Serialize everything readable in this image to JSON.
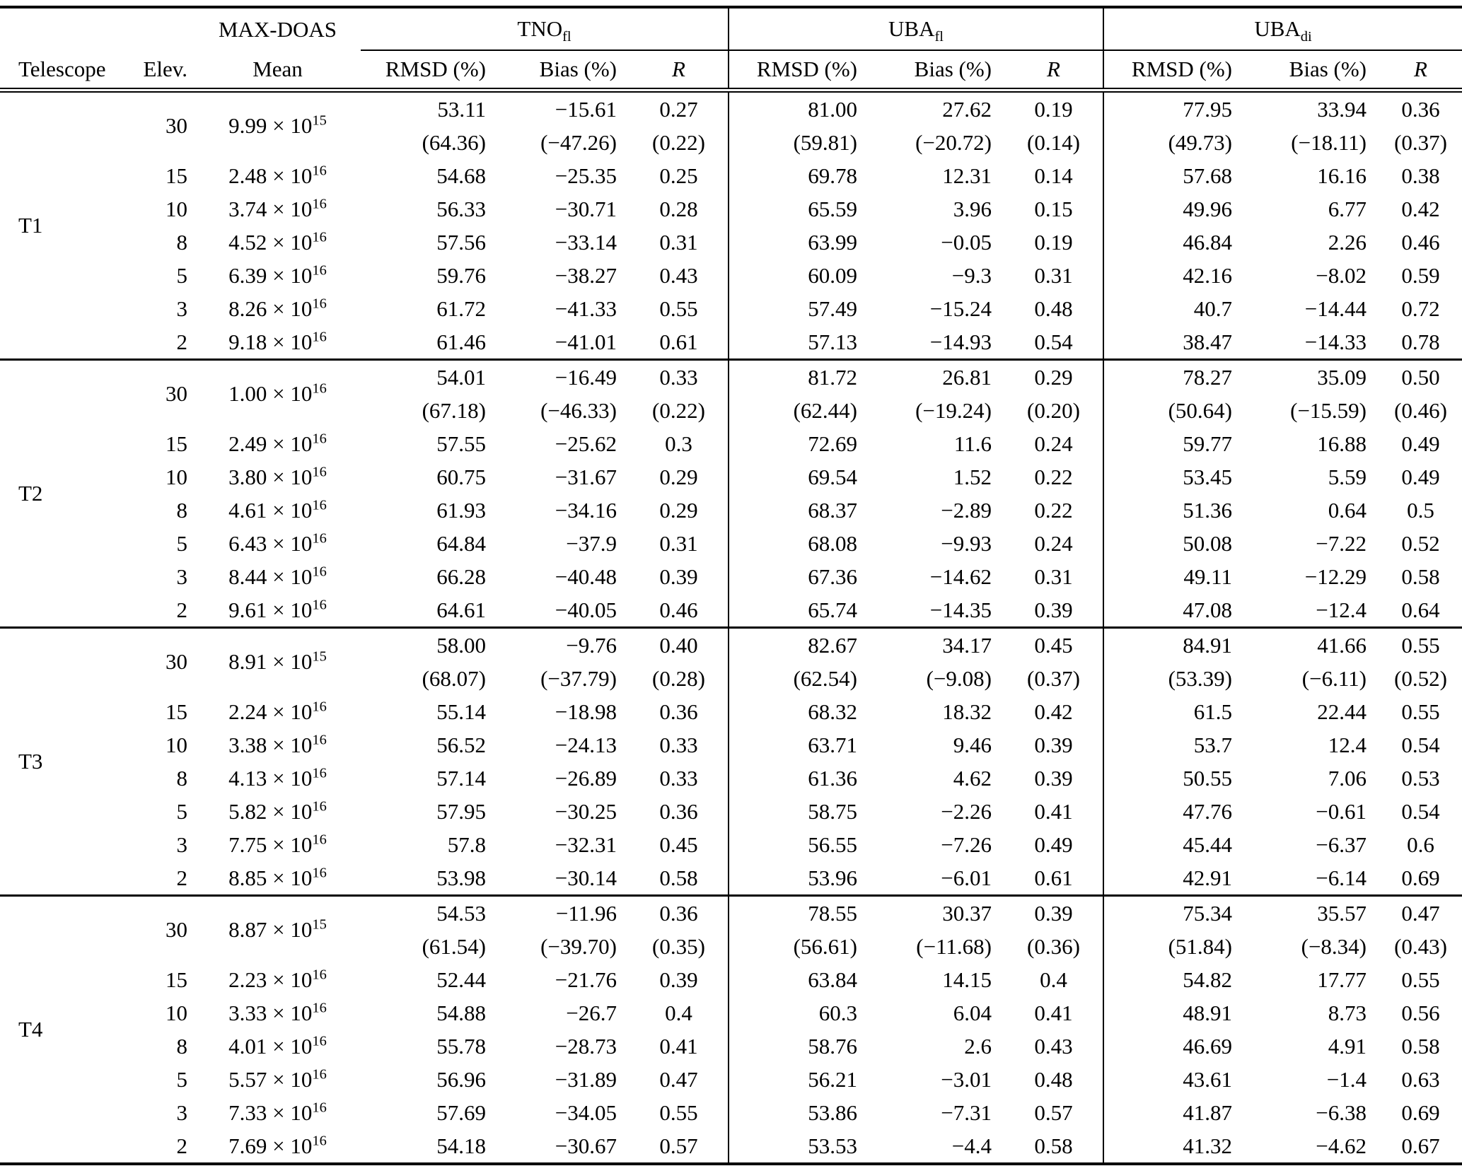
{
  "table": {
    "col_headers": {
      "telescope": "Telescope",
      "elev": "Elev.",
      "mean": "Mean",
      "rmsd": "RMSD (%)",
      "bias": "Bias (%)",
      "r": "R"
    },
    "maxdoas_label": "MAX-DOAS",
    "groups": [
      {
        "base": "TNO",
        "sub": "fl"
      },
      {
        "base": "UBA",
        "sub": "fl"
      },
      {
        "base": "UBA",
        "sub": "di"
      }
    ],
    "times": "×",
    "ten": "10",
    "blocks": [
      {
        "telescope": "T1",
        "rows": [
          {
            "elev": "30",
            "mean_c": "9.99",
            "mean_e": "15",
            "values": [
              "53.11",
              "−15.61",
              "0.27",
              "81.00",
              "27.62",
              "0.19",
              "77.95",
              "33.94",
              "0.36"
            ],
            "paren": [
              "(64.36)",
              "(−47.26)",
              "(0.22)",
              "(59.81)",
              "(−20.72)",
              "(0.14)",
              "(49.73)",
              "(−18.11)",
              "(0.37)"
            ]
          },
          {
            "elev": "15",
            "mean_c": "2.48",
            "mean_e": "16",
            "values": [
              "54.68",
              "−25.35",
              "0.25",
              "69.78",
              "12.31",
              "0.14",
              "57.68",
              "16.16",
              "0.38"
            ]
          },
          {
            "elev": "10",
            "mean_c": "3.74",
            "mean_e": "16",
            "values": [
              "56.33",
              "−30.71",
              "0.28",
              "65.59",
              "3.96",
              "0.15",
              "49.96",
              "6.77",
              "0.42"
            ]
          },
          {
            "elev": "8",
            "mean_c": "4.52",
            "mean_e": "16",
            "values": [
              "57.56",
              "−33.14",
              "0.31",
              "63.99",
              "−0.05",
              "0.19",
              "46.84",
              "2.26",
              "0.46"
            ]
          },
          {
            "elev": "5",
            "mean_c": "6.39",
            "mean_e": "16",
            "values": [
              "59.76",
              "−38.27",
              "0.43",
              "60.09",
              "−9.3",
              "0.31",
              "42.16",
              "−8.02",
              "0.59"
            ]
          },
          {
            "elev": "3",
            "mean_c": "8.26",
            "mean_e": "16",
            "values": [
              "61.72",
              "−41.33",
              "0.55",
              "57.49",
              "−15.24",
              "0.48",
              "40.7",
              "−14.44",
              "0.72"
            ]
          },
          {
            "elev": "2",
            "mean_c": "9.18",
            "mean_e": "16",
            "values": [
              "61.46",
              "−41.01",
              "0.61",
              "57.13",
              "−14.93",
              "0.54",
              "38.47",
              "−14.33",
              "0.78"
            ]
          }
        ]
      },
      {
        "telescope": "T2",
        "rows": [
          {
            "elev": "30",
            "mean_c": "1.00",
            "mean_e": "16",
            "values": [
              "54.01",
              "−16.49",
              "0.33",
              "81.72",
              "26.81",
              "0.29",
              "78.27",
              "35.09",
              "0.50"
            ],
            "paren": [
              "(67.18)",
              "(−46.33)",
              "(0.22)",
              "(62.44)",
              "(−19.24)",
              "(0.20)",
              "(50.64)",
              "(−15.59)",
              "(0.46)"
            ]
          },
          {
            "elev": "15",
            "mean_c": "2.49",
            "mean_e": "16",
            "values": [
              "57.55",
              "−25.62",
              "0.3",
              "72.69",
              "11.6",
              "0.24",
              "59.77",
              "16.88",
              "0.49"
            ]
          },
          {
            "elev": "10",
            "mean_c": "3.80",
            "mean_e": "16",
            "values": [
              "60.75",
              "−31.67",
              "0.29",
              "69.54",
              "1.52",
              "0.22",
              "53.45",
              "5.59",
              "0.49"
            ]
          },
          {
            "elev": "8",
            "mean_c": "4.61",
            "mean_e": "16",
            "values": [
              "61.93",
              "−34.16",
              "0.29",
              "68.37",
              "−2.89",
              "0.22",
              "51.36",
              "0.64",
              "0.5"
            ]
          },
          {
            "elev": "5",
            "mean_c": "6.43",
            "mean_e": "16",
            "values": [
              "64.84",
              "−37.9",
              "0.31",
              "68.08",
              "−9.93",
              "0.24",
              "50.08",
              "−7.22",
              "0.52"
            ]
          },
          {
            "elev": "3",
            "mean_c": "8.44",
            "mean_e": "16",
            "values": [
              "66.28",
              "−40.48",
              "0.39",
              "67.36",
              "−14.62",
              "0.31",
              "49.11",
              "−12.29",
              "0.58"
            ]
          },
          {
            "elev": "2",
            "mean_c": "9.61",
            "mean_e": "16",
            "values": [
              "64.61",
              "−40.05",
              "0.46",
              "65.74",
              "−14.35",
              "0.39",
              "47.08",
              "−12.4",
              "0.64"
            ]
          }
        ]
      },
      {
        "telescope": "T3",
        "rows": [
          {
            "elev": "30",
            "mean_c": "8.91",
            "mean_e": "15",
            "values": [
              "58.00",
              "−9.76",
              "0.40",
              "82.67",
              "34.17",
              "0.45",
              "84.91",
              "41.66",
              "0.55"
            ],
            "paren": [
              "(68.07)",
              "(−37.79)",
              "(0.28)",
              "(62.54)",
              "(−9.08)",
              "(0.37)",
              "(53.39)",
              "(−6.11)",
              "(0.52)"
            ]
          },
          {
            "elev": "15",
            "mean_c": "2.24",
            "mean_e": "16",
            "values": [
              "55.14",
              "−18.98",
              "0.36",
              "68.32",
              "18.32",
              "0.42",
              "61.5",
              "22.44",
              "0.55"
            ]
          },
          {
            "elev": "10",
            "mean_c": "3.38",
            "mean_e": "16",
            "values": [
              "56.52",
              "−24.13",
              "0.33",
              "63.71",
              "9.46",
              "0.39",
              "53.7",
              "12.4",
              "0.54"
            ]
          },
          {
            "elev": "8",
            "mean_c": "4.13",
            "mean_e": "16",
            "values": [
              "57.14",
              "−26.89",
              "0.33",
              "61.36",
              "4.62",
              "0.39",
              "50.55",
              "7.06",
              "0.53"
            ]
          },
          {
            "elev": "5",
            "mean_c": "5.82",
            "mean_e": "16",
            "values": [
              "57.95",
              "−30.25",
              "0.36",
              "58.75",
              "−2.26",
              "0.41",
              "47.76",
              "−0.61",
              "0.54"
            ]
          },
          {
            "elev": "3",
            "mean_c": "7.75",
            "mean_e": "16",
            "values": [
              "57.8",
              "−32.31",
              "0.45",
              "56.55",
              "−7.26",
              "0.49",
              "45.44",
              "−6.37",
              "0.6"
            ]
          },
          {
            "elev": "2",
            "mean_c": "8.85",
            "mean_e": "16",
            "values": [
              "53.98",
              "−30.14",
              "0.58",
              "53.96",
              "−6.01",
              "0.61",
              "42.91",
              "−6.14",
              "0.69"
            ]
          }
        ]
      },
      {
        "telescope": "T4",
        "rows": [
          {
            "elev": "30",
            "mean_c": "8.87",
            "mean_e": "15",
            "values": [
              "54.53",
              "−11.96",
              "0.36",
              "78.55",
              "30.37",
              "0.39",
              "75.34",
              "35.57",
              "0.47"
            ],
            "paren": [
              "(61.54)",
              "(−39.70)",
              "(0.35)",
              "(56.61)",
              "(−11.68)",
              "(0.36)",
              "(51.84)",
              "(−8.34)",
              "(0.43)"
            ]
          },
          {
            "elev": "15",
            "mean_c": "2.23",
            "mean_e": "16",
            "values": [
              "52.44",
              "−21.76",
              "0.39",
              "63.84",
              "14.15",
              "0.4",
              "54.82",
              "17.77",
              "0.55"
            ]
          },
          {
            "elev": "10",
            "mean_c": "3.33",
            "mean_e": "16",
            "values": [
              "54.88",
              "−26.7",
              "0.4",
              "60.3",
              "6.04",
              "0.41",
              "48.91",
              "8.73",
              "0.56"
            ]
          },
          {
            "elev": "8",
            "mean_c": "4.01",
            "mean_e": "16",
            "values": [
              "55.78",
              "−28.73",
              "0.41",
              "58.76",
              "2.6",
              "0.43",
              "46.69",
              "4.91",
              "0.58"
            ]
          },
          {
            "elev": "5",
            "mean_c": "5.57",
            "mean_e": "16",
            "values": [
              "56.96",
              "−31.89",
              "0.47",
              "56.21",
              "−3.01",
              "0.48",
              "43.61",
              "−1.4",
              "0.63"
            ]
          },
          {
            "elev": "3",
            "mean_c": "7.33",
            "mean_e": "16",
            "values": [
              "57.69",
              "−34.05",
              "0.55",
              "53.86",
              "−7.31",
              "0.57",
              "41.87",
              "−6.38",
              "0.69"
            ]
          },
          {
            "elev": "2",
            "mean_c": "7.69",
            "mean_e": "16",
            "values": [
              "54.18",
              "−30.67",
              "0.57",
              "53.53",
              "−4.4",
              "0.58",
              "41.32",
              "−4.62",
              "0.67"
            ]
          }
        ]
      }
    ]
  }
}
